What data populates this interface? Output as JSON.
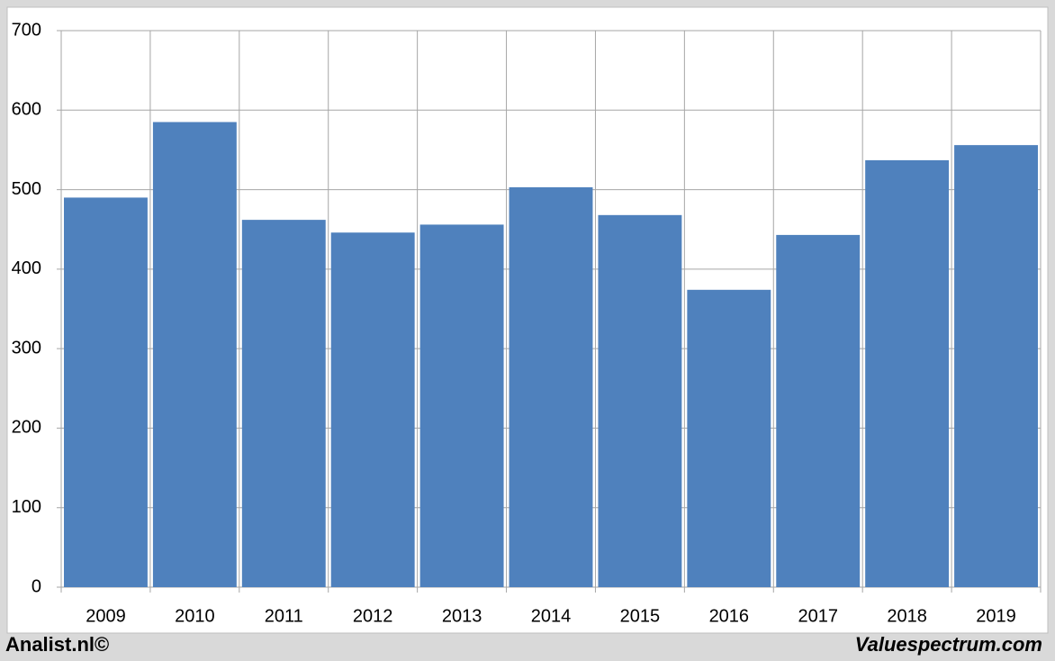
{
  "chart_data": {
    "type": "bar",
    "categories": [
      "2009",
      "2010",
      "2011",
      "2012",
      "2013",
      "2014",
      "2015",
      "2016",
      "2017",
      "2018",
      "2019"
    ],
    "values": [
      490,
      585,
      462,
      446,
      456,
      503,
      468,
      374,
      443,
      537,
      556
    ],
    "color": "#4f81bd",
    "ylim": [
      0,
      700
    ],
    "yticks": [
      0,
      100,
      200,
      300,
      400,
      500,
      600,
      700
    ],
    "grid": true
  },
  "footer": {
    "left": "Analist.nl©",
    "right": "Valuespectrum.com"
  }
}
